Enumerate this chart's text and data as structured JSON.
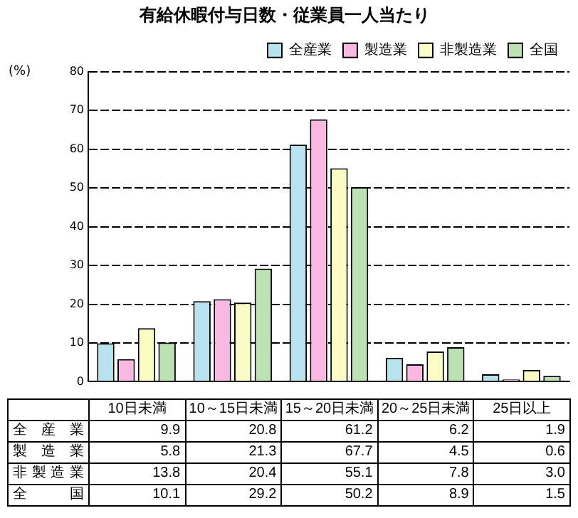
{
  "chart_data": {
    "type": "bar",
    "title": "有給休暇付与日数・従業員一人当たり",
    "ylabel": "(%)",
    "categories": [
      "10日未満",
      "10～15日未満",
      "15～20日未満",
      "20～25日未満",
      "25日以上"
    ],
    "series": [
      {
        "name": "全産業",
        "color": "#b8e2ee",
        "values": [
          9.9,
          20.8,
          61.2,
          6.2,
          1.9
        ],
        "value_labels": [
          "9.9",
          "20.8",
          "61.2",
          "6.2",
          "1.9"
        ]
      },
      {
        "name": "製造業",
        "color": "#f8b8e2",
        "values": [
          5.8,
          21.3,
          67.7,
          4.5,
          0.6
        ],
        "value_labels": [
          "5.8",
          "21.3",
          "67.7",
          "4.5",
          "0.6"
        ]
      },
      {
        "name": "非製造業",
        "color": "#fbfbc6",
        "values": [
          13.8,
          20.4,
          55.1,
          7.8,
          3.0
        ],
        "value_labels": [
          "13.8",
          "20.4",
          "55.1",
          "7.8",
          "3.0"
        ]
      },
      {
        "name": "全国",
        "color": "#bce2b4",
        "values": [
          10.1,
          29.2,
          50.2,
          8.9,
          1.5
        ],
        "value_labels": [
          "10.1",
          "29.2",
          "50.2",
          "8.9",
          "1.5"
        ]
      }
    ],
    "ylim": [
      0,
      80
    ],
    "yticks": [
      0,
      10,
      20,
      30,
      40,
      50,
      60,
      70,
      80
    ],
    "grid": "y",
    "legend": "top right"
  }
}
